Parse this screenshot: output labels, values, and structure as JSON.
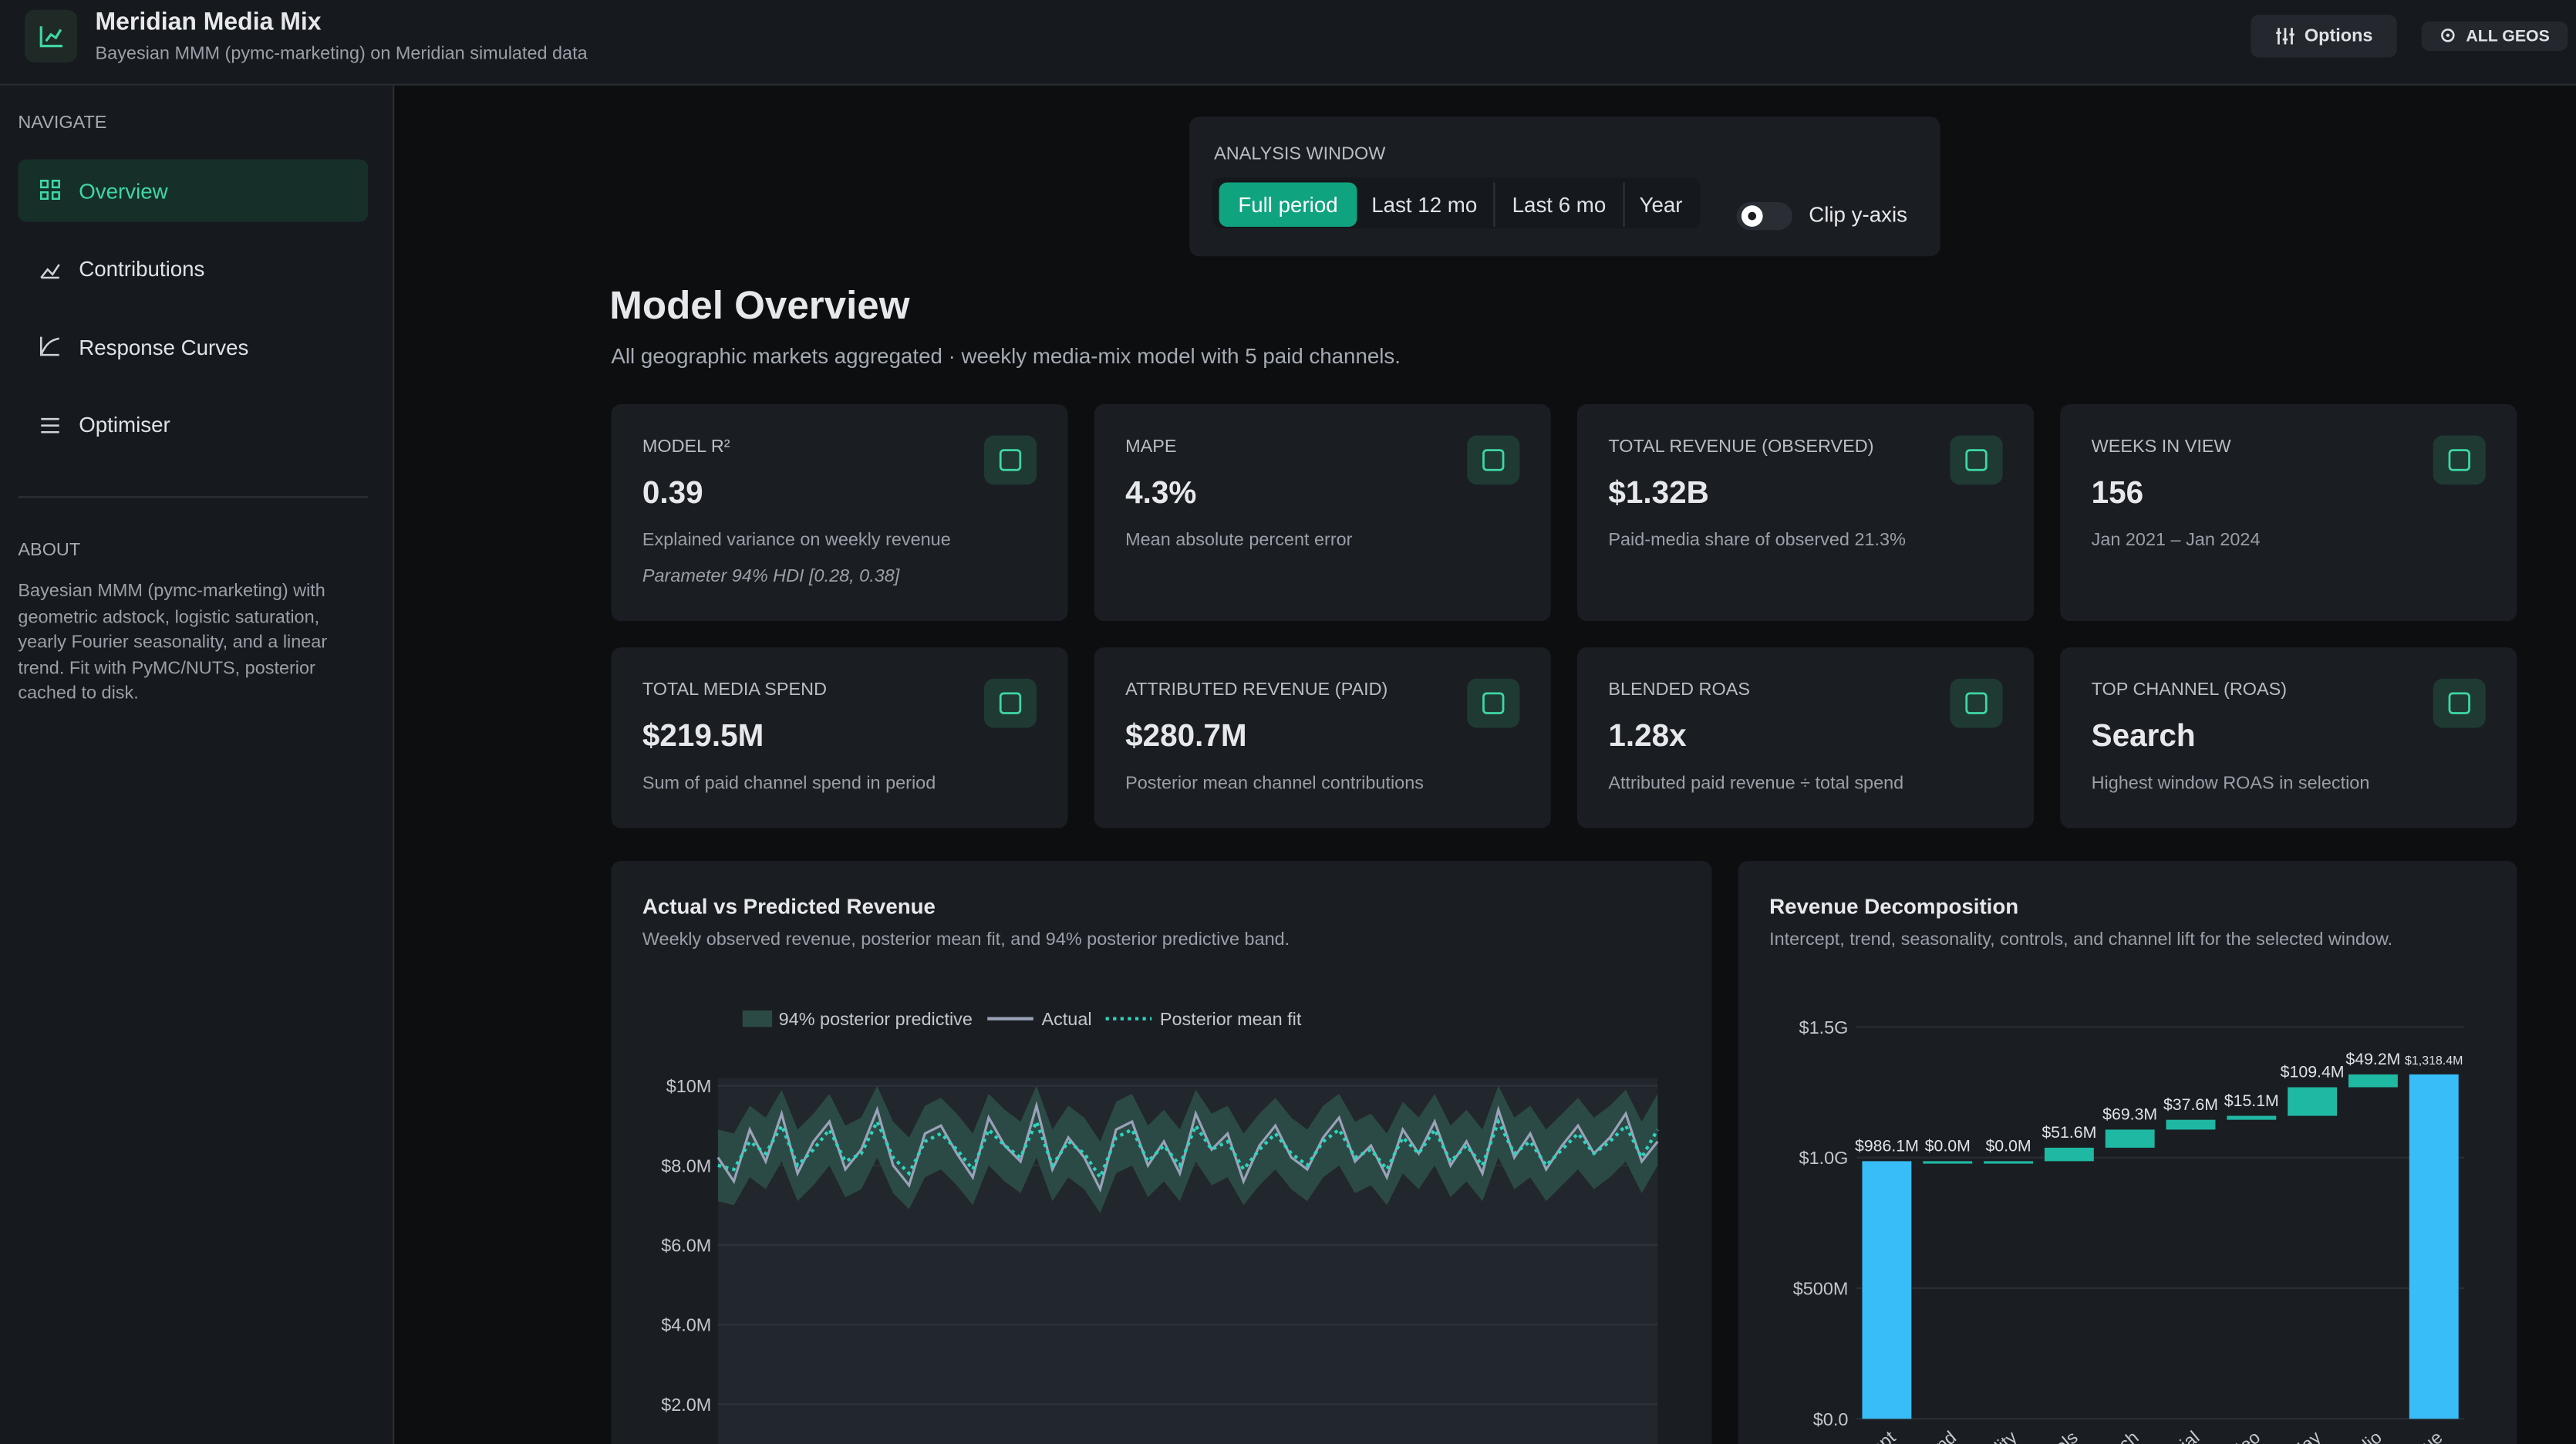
{
  "header": {
    "title": "Meridian Media Mix",
    "subtitle": "Bayesian MMM (pymc-marketing) on Meridian simulated data",
    "options": "Options",
    "geo": "ALL GEOS"
  },
  "sidebar": {
    "nav_heading": "NAVIGATE",
    "nav": [
      "Overview",
      "Contributions",
      "Response Curves",
      "Optimiser"
    ],
    "about_heading": "ABOUT",
    "about_text": "Bayesian MMM (pymc-marketing) with geometric adstock, logistic saturation, yearly Fourier seasonality, and a linear trend. Fit with PyMC/NUTS, posterior cached to disk."
  },
  "analysis_window": {
    "label": "ANALYSIS WINDOW",
    "options": [
      "Full period",
      "Last 12 mo",
      "Last 6 mo",
      "Year"
    ],
    "toggle": "Clip y-axis"
  },
  "overview": {
    "title": "Model Overview",
    "subtitle": "All geographic markets aggregated · weekly media-mix model with 5 paid channels."
  },
  "kpis": [
    {
      "label": "MODEL R²",
      "value": "0.39",
      "note": "Explained variance on weekly revenue",
      "detail": "Parameter 94% HDI [0.28, 0.38]"
    },
    {
      "label": "MAPE",
      "value": "4.3%",
      "note": "Mean absolute percent error"
    },
    {
      "label": "TOTAL REVENUE (OBSERVED)",
      "value": "$1.32B",
      "note": "Paid-media share of observed 21.3%"
    },
    {
      "label": "WEEKS IN VIEW",
      "value": "156",
      "note": "Jan 2021 – Jan 2024"
    },
    {
      "label": "TOTAL MEDIA SPEND",
      "value": "$219.5M",
      "note": "Sum of paid channel spend in period"
    },
    {
      "label": "ATTRIBUTED REVENUE (PAID)",
      "value": "$280.7M",
      "note": "Posterior mean channel contributions"
    },
    {
      "label": "BLENDED ROAS",
      "value": "1.28x",
      "note": "Attributed paid revenue ÷ total spend"
    },
    {
      "label": "TOP CHANNEL (ROAS)",
      "value": "Search",
      "note": "Highest window ROAS in selection"
    }
  ],
  "chart_data": [
    {
      "type": "line",
      "title": "Actual vs Predicted Revenue",
      "subtitle": "Weekly observed revenue, posterior mean fit, and 94% posterior predictive band.",
      "ylim": [
        0,
        10.2
      ],
      "yticks": [
        {
          "value": 2,
          "label": "$2.0M"
        },
        {
          "value": 4,
          "label": "$4.0M"
        },
        {
          "value": 6,
          "label": "$6.0M"
        },
        {
          "value": 8,
          "label": "$8.0M"
        },
        {
          "value": 10,
          "label": "$10M"
        }
      ],
      "grid": true,
      "band": {
        "name": "94% posterior predictive",
        "color": "#2c4a45",
        "upper": [
          8.9,
          8.8,
          9.5,
          9.2,
          9.9,
          8.9,
          9.3,
          9.8,
          9.0,
          9.2,
          10.0,
          9.1,
          8.7,
          9.5,
          9.7,
          9.3,
          8.8,
          9.8,
          9.4,
          9.1,
          10.0,
          8.9,
          9.5,
          9.2,
          8.6,
          9.6,
          9.8,
          9.0,
          9.4,
          8.9,
          9.9,
          9.3,
          9.5,
          8.8,
          9.3,
          9.7,
          9.2,
          8.9,
          9.5,
          9.8,
          9.1,
          9.3,
          8.8,
          9.6,
          9.2,
          9.8,
          9.0,
          9.4,
          8.9,
          10.0,
          9.2,
          9.5,
          8.9,
          9.3,
          9.7,
          9.2,
          9.5,
          9.9,
          9.1,
          9.8
        ],
        "lower": [
          7.1,
          7.0,
          7.7,
          7.4,
          8.1,
          7.1,
          7.5,
          8.0,
          7.2,
          7.4,
          8.2,
          7.3,
          6.9,
          7.7,
          7.9,
          7.5,
          7.0,
          8.0,
          7.6,
          7.3,
          8.2,
          7.1,
          7.7,
          7.4,
          6.8,
          7.8,
          8.0,
          7.2,
          7.6,
          7.1,
          8.1,
          7.5,
          7.7,
          7.0,
          7.5,
          7.9,
          7.4,
          7.1,
          7.7,
          8.0,
          7.3,
          7.5,
          7.0,
          7.8,
          7.4,
          8.0,
          7.2,
          7.6,
          7.1,
          8.2,
          7.4,
          7.7,
          7.1,
          7.5,
          7.9,
          7.4,
          7.7,
          8.1,
          7.3,
          8.0
        ]
      },
      "series": [
        {
          "name": "Actual",
          "color": "#9aa2b8",
          "dash": false,
          "values": [
            8.2,
            7.6,
            8.9,
            8.1,
            9.3,
            7.8,
            8.6,
            9.1,
            7.9,
            8.4,
            9.4,
            8.0,
            7.5,
            8.8,
            9.0,
            8.3,
            7.7,
            9.2,
            8.5,
            8.1,
            9.5,
            7.9,
            8.7,
            8.2,
            7.4,
            8.9,
            9.1,
            8.0,
            8.6,
            7.8,
            9.3,
            8.4,
            8.8,
            7.6,
            8.5,
            9.0,
            8.2,
            7.9,
            8.7,
            9.2,
            8.1,
            8.5,
            7.7,
            8.9,
            8.3,
            9.1,
            8.0,
            8.6,
            7.8,
            9.4,
            8.2,
            8.8,
            7.9,
            8.5,
            9.0,
            8.3,
            8.7,
            9.3,
            8.1,
            8.6
          ]
        },
        {
          "name": "Posterior mean fit",
          "color": "#2dd4bf",
          "dash": true,
          "values": [
            8.0,
            7.9,
            8.6,
            8.3,
            9.0,
            8.0,
            8.4,
            8.9,
            8.1,
            8.3,
            9.1,
            8.2,
            7.8,
            8.6,
            8.8,
            8.4,
            7.9,
            8.9,
            8.5,
            8.2,
            9.1,
            8.0,
            8.6,
            8.3,
            7.7,
            8.7,
            8.9,
            8.1,
            8.5,
            8.0,
            9.0,
            8.4,
            8.6,
            7.9,
            8.4,
            8.8,
            8.3,
            8.0,
            8.6,
            8.9,
            8.2,
            8.4,
            7.9,
            8.7,
            8.3,
            8.9,
            8.1,
            8.5,
            8.0,
            9.1,
            8.3,
            8.6,
            8.0,
            8.4,
            8.8,
            8.3,
            8.6,
            9.0,
            8.2,
            8.9
          ]
        }
      ]
    },
    {
      "type": "waterfall",
      "title": "Revenue Decomposition",
      "subtitle": "Intercept, trend, seasonality, controls, and channel lift for the selected window.",
      "ylim": [
        0,
        1500
      ],
      "yticks": [
        {
          "value": 0,
          "label": "$0.0"
        },
        {
          "value": 500,
          "label": "$500M"
        },
        {
          "value": 1000,
          "label": "$1.0G"
        },
        {
          "value": 1500,
          "label": "$1.5G"
        }
      ],
      "grid": true,
      "color": "#1fb8a3",
      "total_color": "#38bdf8",
      "categories": [
        "Intercept",
        "Trend",
        "Seasonality",
        "Controls",
        "Search",
        "Social",
        "Video",
        "Display",
        "Radio",
        "Revenue"
      ],
      "values": [
        986.1,
        0.0,
        0.0,
        51.6,
        69.3,
        37.6,
        15.1,
        109.4,
        49.2,
        1318.4
      ],
      "value_labels": [
        "$986.1M",
        "$0.0M",
        "$0.0M",
        "$51.6M",
        "$69.3M",
        "$37.6M",
        "$15.1M",
        "$109.4M",
        "$49.2M",
        "$1,318.4M"
      ]
    }
  ]
}
